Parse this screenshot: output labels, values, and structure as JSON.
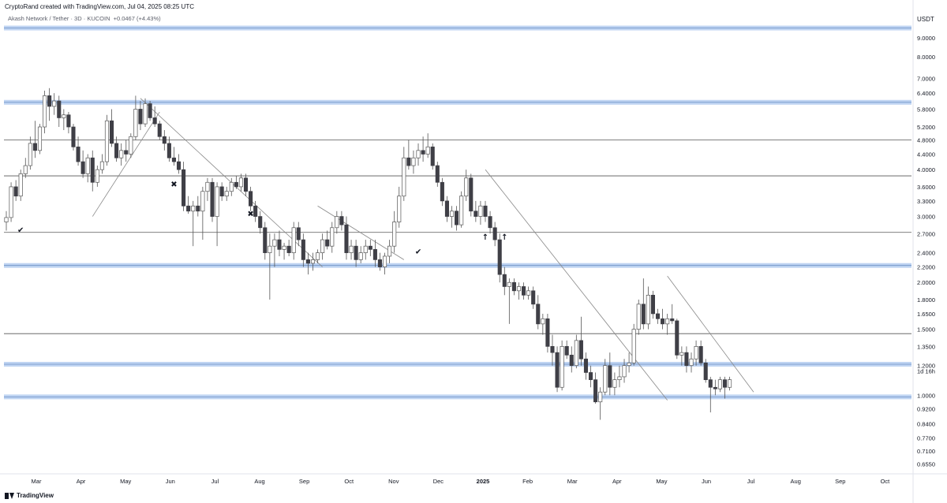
{
  "header": {
    "attribution": "CryptoRand created with TradingView.com, Jul 04, 2025 08:25 UTC",
    "symbol": "Akash Network / Tether · 3D · KUCOIN",
    "change": "+0.0467 (+4.43%)"
  },
  "footer": {
    "brand": "TradingView"
  },
  "chart_data": {
    "type": "candlestick",
    "currency_label": "USDT",
    "y_scale": "log",
    "ylim": [
      0.62,
      10.6
    ],
    "y_ticks": [
      "9.0000",
      "8.0000",
      "7.0000",
      "6.4000",
      "5.8000",
      "5.2000",
      "4.8000",
      "4.4000",
      "4.0000",
      "3.6000",
      "3.3000",
      "3.0000",
      "2.7000",
      "2.4000",
      "2.2000",
      "2.0000",
      "1.8000",
      "1.6500",
      "1.5000",
      "1.3500",
      "1.2000",
      "1.0000",
      "0.9200",
      "0.8400",
      "0.7700",
      "0.7100",
      "0.6550"
    ],
    "y_tick_values": [
      9.0,
      8.0,
      7.0,
      6.4,
      5.8,
      5.2,
      4.8,
      4.4,
      4.0,
      3.6,
      3.3,
      3.0,
      2.7,
      2.4,
      2.2,
      2.0,
      1.8,
      1.65,
      1.5,
      1.35,
      1.2,
      1.0,
      0.92,
      0.84,
      0.77,
      0.71,
      0.655
    ],
    "countdown_label": "1d 16h",
    "x_ticks": [
      "Mar",
      "Apr",
      "May",
      "Jun",
      "Jul",
      "Aug",
      "Sep",
      "Oct",
      "Nov",
      "Dec",
      "2025",
      "Feb",
      "Mar",
      "Apr",
      "May",
      "Jun",
      "Jul",
      "Aug",
      "Sep",
      "Oct"
    ],
    "x_tick_months_since_start": [
      0,
      1,
      2,
      3,
      4,
      5,
      6,
      7,
      8,
      9,
      10,
      11,
      12,
      13,
      14,
      15,
      16,
      17,
      18,
      19
    ],
    "x_tick_bold": [
      false,
      false,
      false,
      false,
      false,
      false,
      false,
      false,
      false,
      false,
      true,
      false,
      false,
      false,
      false,
      false,
      false,
      false,
      false,
      false
    ],
    "first_month": "2024-03",
    "candles": [
      {
        "o": 2.9,
        "h": 3.1,
        "l": 2.75,
        "c": 2.98
      },
      {
        "o": 2.98,
        "h": 3.7,
        "l": 2.9,
        "c": 3.6
      },
      {
        "o": 3.6,
        "h": 3.75,
        "l": 3.3,
        "c": 3.4
      },
      {
        "o": 3.4,
        "h": 4.0,
        "l": 3.3,
        "c": 3.9
      },
      {
        "o": 3.9,
        "h": 4.3,
        "l": 3.8,
        "c": 4.1
      },
      {
        "o": 4.1,
        "h": 4.9,
        "l": 4.0,
        "c": 4.7
      },
      {
        "o": 4.7,
        "h": 5.4,
        "l": 4.3,
        "c": 4.5
      },
      {
        "o": 4.5,
        "h": 5.3,
        "l": 4.4,
        "c": 5.2
      },
      {
        "o": 5.2,
        "h": 6.5,
        "l": 5.0,
        "c": 6.3
      },
      {
        "o": 6.3,
        "h": 6.6,
        "l": 5.4,
        "c": 5.9
      },
      {
        "o": 5.9,
        "h": 6.4,
        "l": 5.6,
        "c": 6.1
      },
      {
        "o": 6.1,
        "h": 6.3,
        "l": 5.2,
        "c": 5.5
      },
      {
        "o": 5.5,
        "h": 5.8,
        "l": 5.1,
        "c": 5.6
      },
      {
        "o": 5.6,
        "h": 5.7,
        "l": 5.0,
        "c": 5.2
      },
      {
        "o": 5.2,
        "h": 5.3,
        "l": 4.5,
        "c": 4.6
      },
      {
        "o": 4.6,
        "h": 4.9,
        "l": 4.1,
        "c": 4.2
      },
      {
        "o": 4.2,
        "h": 4.5,
        "l": 3.8,
        "c": 3.9
      },
      {
        "o": 3.9,
        "h": 4.4,
        "l": 3.7,
        "c": 4.3
      },
      {
        "o": 4.3,
        "h": 4.5,
        "l": 3.5,
        "c": 3.7
      },
      {
        "o": 3.7,
        "h": 4.1,
        "l": 3.6,
        "c": 4.0
      },
      {
        "o": 4.0,
        "h": 4.4,
        "l": 3.9,
        "c": 4.2
      },
      {
        "o": 4.2,
        "h": 5.6,
        "l": 4.1,
        "c": 5.4
      },
      {
        "o": 5.4,
        "h": 5.8,
        "l": 4.6,
        "c": 4.7
      },
      {
        "o": 4.7,
        "h": 4.9,
        "l": 4.2,
        "c": 4.3
      },
      {
        "o": 4.3,
        "h": 4.7,
        "l": 4.1,
        "c": 4.5
      },
      {
        "o": 4.5,
        "h": 4.8,
        "l": 4.2,
        "c": 4.4
      },
      {
        "o": 4.4,
        "h": 5.0,
        "l": 4.3,
        "c": 4.9
      },
      {
        "o": 4.9,
        "h": 6.3,
        "l": 4.8,
        "c": 5.8
      },
      {
        "o": 5.8,
        "h": 6.1,
        "l": 5.1,
        "c": 5.3
      },
      {
        "o": 5.3,
        "h": 6.2,
        "l": 5.2,
        "c": 6.0
      },
      {
        "o": 6.0,
        "h": 6.1,
        "l": 5.4,
        "c": 5.5
      },
      {
        "o": 5.5,
        "h": 5.9,
        "l": 5.2,
        "c": 5.3
      },
      {
        "o": 5.3,
        "h": 5.4,
        "l": 4.8,
        "c": 4.9
      },
      {
        "o": 4.9,
        "h": 5.1,
        "l": 4.5,
        "c": 4.7
      },
      {
        "o": 4.7,
        "h": 4.9,
        "l": 4.2,
        "c": 4.3
      },
      {
        "o": 4.3,
        "h": 4.6,
        "l": 4.1,
        "c": 4.2
      },
      {
        "o": 4.2,
        "h": 4.4,
        "l": 3.9,
        "c": 4.0
      },
      {
        "o": 4.0,
        "h": 4.2,
        "l": 3.1,
        "c": 3.2
      },
      {
        "o": 3.2,
        "h": 3.4,
        "l": 3.05,
        "c": 3.1
      },
      {
        "o": 3.1,
        "h": 3.3,
        "l": 2.5,
        "c": 3.2
      },
      {
        "o": 3.2,
        "h": 3.4,
        "l": 3.0,
        "c": 3.1
      },
      {
        "o": 3.1,
        "h": 3.6,
        "l": 2.6,
        "c": 3.5
      },
      {
        "o": 3.5,
        "h": 3.8,
        "l": 3.3,
        "c": 3.7
      },
      {
        "o": 3.7,
        "h": 3.8,
        "l": 2.9,
        "c": 3.0
      },
      {
        "o": 3.0,
        "h": 3.7,
        "l": 2.5,
        "c": 3.6
      },
      {
        "o": 3.6,
        "h": 3.7,
        "l": 3.3,
        "c": 3.4
      },
      {
        "o": 3.4,
        "h": 3.6,
        "l": 3.3,
        "c": 3.5
      },
      {
        "o": 3.5,
        "h": 3.8,
        "l": 3.4,
        "c": 3.7
      },
      {
        "o": 3.7,
        "h": 3.85,
        "l": 3.55,
        "c": 3.6
      },
      {
        "o": 3.6,
        "h": 3.9,
        "l": 3.5,
        "c": 3.8
      },
      {
        "o": 3.8,
        "h": 3.9,
        "l": 3.4,
        "c": 3.5
      },
      {
        "o": 3.5,
        "h": 3.6,
        "l": 3.1,
        "c": 3.2
      },
      {
        "o": 3.2,
        "h": 3.3,
        "l": 2.9,
        "c": 3.0
      },
      {
        "o": 3.0,
        "h": 3.1,
        "l": 2.7,
        "c": 2.8
      },
      {
        "o": 2.8,
        "h": 2.9,
        "l": 2.3,
        "c": 2.4
      },
      {
        "o": 2.4,
        "h": 2.7,
        "l": 1.8,
        "c": 2.5
      },
      {
        "o": 2.5,
        "h": 2.7,
        "l": 2.2,
        "c": 2.6
      },
      {
        "o": 2.6,
        "h": 2.75,
        "l": 2.35,
        "c": 2.45
      },
      {
        "o": 2.45,
        "h": 2.55,
        "l": 2.3,
        "c": 2.5
      },
      {
        "o": 2.5,
        "h": 2.6,
        "l": 2.35,
        "c": 2.4
      },
      {
        "o": 2.4,
        "h": 2.9,
        "l": 2.3,
        "c": 2.8
      },
      {
        "o": 2.8,
        "h": 2.9,
        "l": 2.5,
        "c": 2.6
      },
      {
        "o": 2.6,
        "h": 2.7,
        "l": 2.2,
        "c": 2.3
      },
      {
        "o": 2.3,
        "h": 2.4,
        "l": 2.1,
        "c": 2.25
      },
      {
        "o": 2.25,
        "h": 2.4,
        "l": 2.15,
        "c": 2.3
      },
      {
        "o": 2.3,
        "h": 2.45,
        "l": 2.25,
        "c": 2.4
      },
      {
        "o": 2.4,
        "h": 2.7,
        "l": 2.3,
        "c": 2.6
      },
      {
        "o": 2.6,
        "h": 2.75,
        "l": 2.45,
        "c": 2.5
      },
      {
        "o": 2.5,
        "h": 2.9,
        "l": 2.4,
        "c": 2.8
      },
      {
        "o": 2.8,
        "h": 3.1,
        "l": 2.7,
        "c": 3.0
      },
      {
        "o": 3.0,
        "h": 3.1,
        "l": 2.75,
        "c": 2.85
      },
      {
        "o": 2.85,
        "h": 3.0,
        "l": 2.3,
        "c": 2.4
      },
      {
        "o": 2.4,
        "h": 2.6,
        "l": 2.3,
        "c": 2.5
      },
      {
        "o": 2.5,
        "h": 2.6,
        "l": 2.2,
        "c": 2.3
      },
      {
        "o": 2.3,
        "h": 2.5,
        "l": 2.25,
        "c": 2.4
      },
      {
        "o": 2.4,
        "h": 2.6,
        "l": 2.3,
        "c": 2.5
      },
      {
        "o": 2.5,
        "h": 2.6,
        "l": 2.35,
        "c": 2.45
      },
      {
        "o": 2.45,
        "h": 2.6,
        "l": 2.2,
        "c": 2.3
      },
      {
        "o": 2.3,
        "h": 2.4,
        "l": 2.15,
        "c": 2.2
      },
      {
        "o": 2.2,
        "h": 2.4,
        "l": 2.1,
        "c": 2.35
      },
      {
        "o": 2.35,
        "h": 2.6,
        "l": 2.25,
        "c": 2.5
      },
      {
        "o": 2.5,
        "h": 3.1,
        "l": 2.4,
        "c": 2.9
      },
      {
        "o": 2.9,
        "h": 3.6,
        "l": 2.8,
        "c": 3.4
      },
      {
        "o": 3.4,
        "h": 4.6,
        "l": 3.3,
        "c": 4.3
      },
      {
        "o": 4.3,
        "h": 4.8,
        "l": 4.0,
        "c": 4.1
      },
      {
        "o": 4.1,
        "h": 4.5,
        "l": 3.9,
        "c": 4.3
      },
      {
        "o": 4.3,
        "h": 4.7,
        "l": 4.1,
        "c": 4.5
      },
      {
        "o": 4.5,
        "h": 4.9,
        "l": 4.2,
        "c": 4.4
      },
      {
        "o": 4.4,
        "h": 5.0,
        "l": 4.3,
        "c": 4.6
      },
      {
        "o": 4.6,
        "h": 4.7,
        "l": 4.0,
        "c": 4.1
      },
      {
        "o": 4.1,
        "h": 4.2,
        "l": 3.6,
        "c": 3.7
      },
      {
        "o": 3.7,
        "h": 3.8,
        "l": 3.2,
        "c": 3.3
      },
      {
        "o": 3.3,
        "h": 3.4,
        "l": 2.9,
        "c": 3.0
      },
      {
        "o": 3.0,
        "h": 3.2,
        "l": 2.8,
        "c": 3.1
      },
      {
        "o": 3.1,
        "h": 3.2,
        "l": 2.75,
        "c": 2.85
      },
      {
        "o": 2.85,
        "h": 3.5,
        "l": 2.8,
        "c": 3.4
      },
      {
        "o": 3.4,
        "h": 4.0,
        "l": 3.3,
        "c": 3.8
      },
      {
        "o": 3.8,
        "h": 3.9,
        "l": 3.0,
        "c": 3.1
      },
      {
        "o": 3.1,
        "h": 3.3,
        "l": 2.9,
        "c": 3.0
      },
      {
        "o": 3.0,
        "h": 3.3,
        "l": 2.85,
        "c": 3.2
      },
      {
        "o": 3.2,
        "h": 3.3,
        "l": 2.9,
        "c": 3.0
      },
      {
        "o": 3.0,
        "h": 3.1,
        "l": 2.7,
        "c": 2.8
      },
      {
        "o": 2.8,
        "h": 2.9,
        "l": 2.5,
        "c": 2.6
      },
      {
        "o": 2.6,
        "h": 2.7,
        "l": 2.0,
        "c": 2.1
      },
      {
        "o": 2.1,
        "h": 2.2,
        "l": 1.85,
        "c": 1.95
      },
      {
        "o": 1.95,
        "h": 2.05,
        "l": 1.55,
        "c": 2.0
      },
      {
        "o": 2.0,
        "h": 2.05,
        "l": 1.85,
        "c": 1.9
      },
      {
        "o": 1.9,
        "h": 2.0,
        "l": 1.8,
        "c": 1.95
      },
      {
        "o": 1.95,
        "h": 2.0,
        "l": 1.8,
        "c": 1.85
      },
      {
        "o": 1.85,
        "h": 1.95,
        "l": 1.8,
        "c": 1.9
      },
      {
        "o": 1.9,
        "h": 1.95,
        "l": 1.7,
        "c": 1.75
      },
      {
        "o": 1.75,
        "h": 1.85,
        "l": 1.5,
        "c": 1.55
      },
      {
        "o": 1.55,
        "h": 1.65,
        "l": 1.45,
        "c": 1.6
      },
      {
        "o": 1.6,
        "h": 1.65,
        "l": 1.3,
        "c": 1.35
      },
      {
        "o": 1.35,
        "h": 1.45,
        "l": 1.2,
        "c": 1.3
      },
      {
        "o": 1.3,
        "h": 1.35,
        "l": 1.02,
        "c": 1.05
      },
      {
        "o": 1.05,
        "h": 1.4,
        "l": 1.03,
        "c": 1.35
      },
      {
        "o": 1.35,
        "h": 1.4,
        "l": 1.25,
        "c": 1.28
      },
      {
        "o": 1.28,
        "h": 1.35,
        "l": 1.15,
        "c": 1.2
      },
      {
        "o": 1.2,
        "h": 1.45,
        "l": 1.18,
        "c": 1.4
      },
      {
        "o": 1.4,
        "h": 1.62,
        "l": 1.2,
        "c": 1.25
      },
      {
        "o": 1.25,
        "h": 1.3,
        "l": 1.1,
        "c": 1.15
      },
      {
        "o": 1.15,
        "h": 1.2,
        "l": 1.05,
        "c": 1.1
      },
      {
        "o": 1.1,
        "h": 1.15,
        "l": 0.95,
        "c": 0.96
      },
      {
        "o": 0.96,
        "h": 1.05,
        "l": 0.86,
        "c": 1.02
      },
      {
        "o": 1.02,
        "h": 1.25,
        "l": 1.0,
        "c": 1.2
      },
      {
        "o": 1.2,
        "h": 1.3,
        "l": 1.0,
        "c": 1.05
      },
      {
        "o": 1.05,
        "h": 1.15,
        "l": 1.0,
        "c": 1.1
      },
      {
        "o": 1.1,
        "h": 1.2,
        "l": 1.05,
        "c": 1.12
      },
      {
        "o": 1.12,
        "h": 1.25,
        "l": 1.08,
        "c": 1.2
      },
      {
        "o": 1.2,
        "h": 1.3,
        "l": 1.15,
        "c": 1.22
      },
      {
        "o": 1.22,
        "h": 1.55,
        "l": 1.2,
        "c": 1.5
      },
      {
        "o": 1.5,
        "h": 1.8,
        "l": 1.45,
        "c": 1.75
      },
      {
        "o": 1.75,
        "h": 2.05,
        "l": 1.5,
        "c": 1.55
      },
      {
        "o": 1.55,
        "h": 1.95,
        "l": 1.5,
        "c": 1.85
      },
      {
        "o": 1.85,
        "h": 1.9,
        "l": 1.6,
        "c": 1.65
      },
      {
        "o": 1.65,
        "h": 1.7,
        "l": 1.55,
        "c": 1.6
      },
      {
        "o": 1.6,
        "h": 1.7,
        "l": 1.5,
        "c": 1.55
      },
      {
        "o": 1.55,
        "h": 1.65,
        "l": 1.45,
        "c": 1.6
      },
      {
        "o": 1.6,
        "h": 1.75,
        "l": 1.55,
        "c": 1.58
      },
      {
        "o": 1.58,
        "h": 1.6,
        "l": 1.25,
        "c": 1.28
      },
      {
        "o": 1.28,
        "h": 1.35,
        "l": 1.2,
        "c": 1.3
      },
      {
        "o": 1.3,
        "h": 1.35,
        "l": 1.15,
        "c": 1.2
      },
      {
        "o": 1.2,
        "h": 1.3,
        "l": 1.15,
        "c": 1.25
      },
      {
        "o": 1.25,
        "h": 1.4,
        "l": 1.2,
        "c": 1.35
      },
      {
        "o": 1.35,
        "h": 1.4,
        "l": 1.2,
        "c": 1.22
      },
      {
        "o": 1.22,
        "h": 1.25,
        "l": 1.08,
        "c": 1.1
      },
      {
        "o": 1.1,
        "h": 1.12,
        "l": 0.9,
        "c": 1.05
      },
      {
        "o": 1.05,
        "h": 1.1,
        "l": 1.0,
        "c": 1.04
      },
      {
        "o": 1.04,
        "h": 1.12,
        "l": 1.02,
        "c": 1.1
      },
      {
        "o": 1.1,
        "h": 1.12,
        "l": 0.98,
        "c": 1.05
      },
      {
        "o": 1.05,
        "h": 1.12,
        "l": 1.03,
        "c": 1.1
      }
    ],
    "levels": [
      {
        "value": 9.55,
        "style": "zone"
      },
      {
        "value": 6.05,
        "style": "zone"
      },
      {
        "value": 4.8,
        "style": "line"
      },
      {
        "value": 3.85,
        "style": "line"
      },
      {
        "value": 2.72,
        "style": "line"
      },
      {
        "value": 2.22,
        "style": "zone"
      },
      {
        "value": 1.46,
        "style": "line"
      },
      {
        "value": 1.21,
        "style": "zone"
      },
      {
        "value": 0.99,
        "style": "zone"
      }
    ],
    "trendlines": [
      {
        "from": [
          18,
          3.0
        ],
        "to": [
          32,
          5.7
        ]
      },
      {
        "from": [
          28,
          6.2
        ],
        "to": [
          66,
          2.2
        ]
      },
      {
        "from": [
          65,
          3.2
        ],
        "to": [
          83,
          2.3
        ]
      },
      {
        "from": [
          100,
          4.0
        ],
        "to": [
          138,
          0.97
        ]
      },
      {
        "from": [
          138,
          2.08
        ],
        "to": [
          156,
          1.02
        ]
      }
    ],
    "markers": [
      {
        "i": 3,
        "price": 2.72,
        "glyph": "✔"
      },
      {
        "i": 35,
        "price": 3.6,
        "glyph": "✖"
      },
      {
        "i": 51,
        "price": 3.0,
        "glyph": "✖"
      },
      {
        "i": 86,
        "price": 2.38,
        "glyph": "✔"
      },
      {
        "i": 100,
        "price": 2.6,
        "glyph": "↑"
      },
      {
        "i": 104,
        "price": 2.6,
        "glyph": "↑"
      }
    ],
    "colors": {
      "up_body": "#ffffff",
      "down_body": "#3f3f46",
      "wick": "#555555",
      "zone": "#a9c6ee",
      "level_line": "#555555",
      "trendline": "#888888"
    }
  }
}
